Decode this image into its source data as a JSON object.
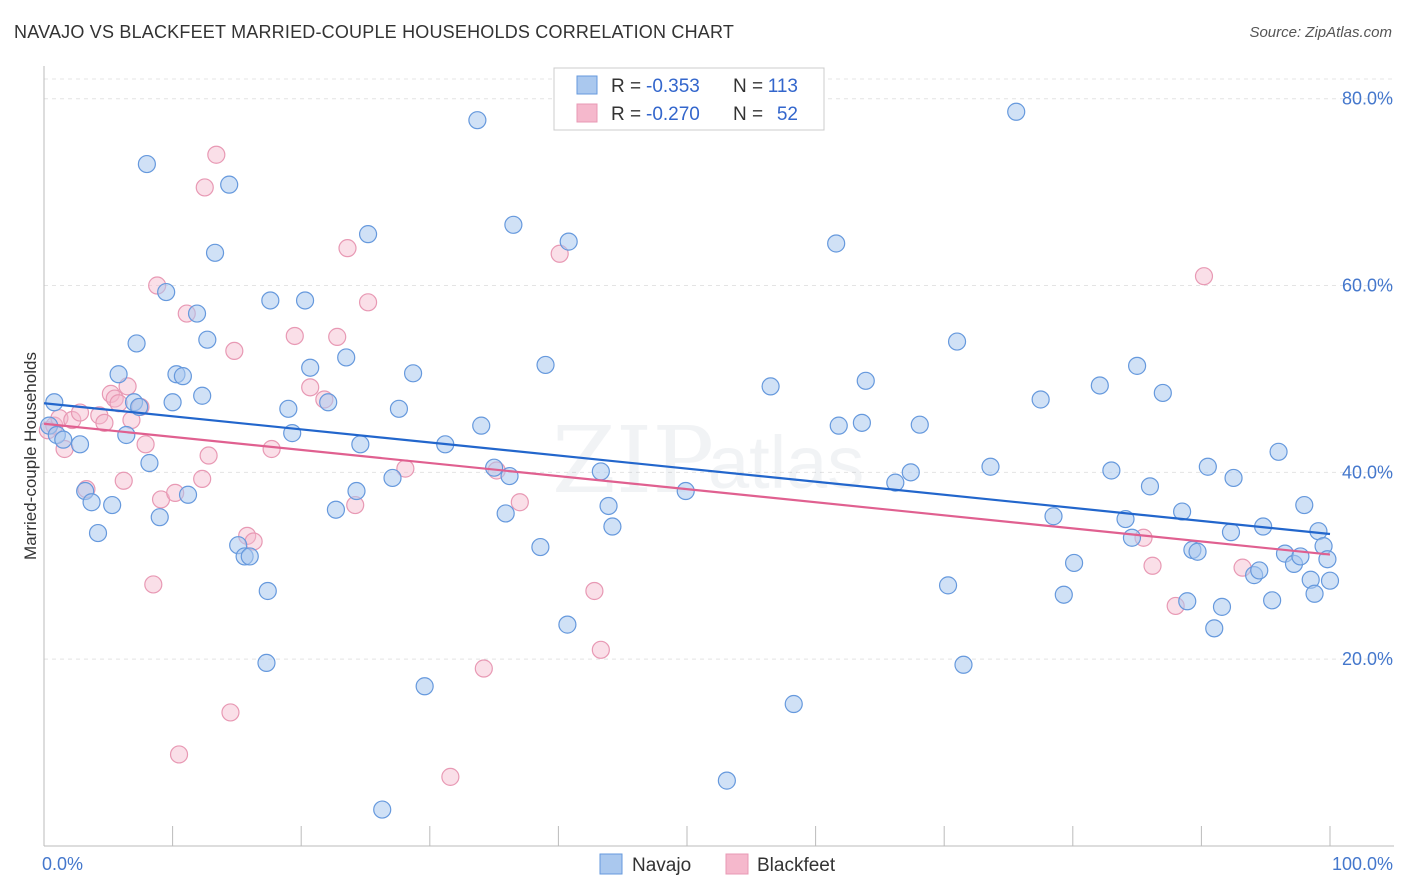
{
  "title": "NAVAJO VS BLACKFEET MARRIED-COUPLE HOUSEHOLDS CORRELATION CHART",
  "source": "Source: ZipAtlas.com",
  "watermark": {
    "zip": "ZIP",
    "atlas": "atlas"
  },
  "colors": {
    "navajo_fill": "#aac8ee",
    "navajo_stroke": "#6699dd",
    "navajo_line": "#2266cc",
    "blackfeet_fill": "#f5b8cc",
    "blackfeet_stroke": "#e899b4",
    "blackfeet_line": "#e06090",
    "axis_text": "#4477cc",
    "grid": "#e4e4e4"
  },
  "legend_top": {
    "rows": [
      {
        "r_label": "R =",
        "r_value": "-0.353",
        "n_label": "N =",
        "n_value": "113"
      },
      {
        "r_label": "R =",
        "r_value": "-0.270",
        "n_label": "N =",
        "n_value": "52"
      }
    ]
  },
  "legend_bottom": {
    "navajo": "Navajo",
    "blackfeet": "Blackfeet"
  },
  "chart_data": {
    "type": "scatter",
    "title": "NAVAJO VS BLACKFEET MARRIED-COUPLE HOUSEHOLDS CORRELATION CHART",
    "xlabel": "",
    "ylabel": "Married-couple Households",
    "xlim": [
      0,
      100
    ],
    "ylim": [
      0,
      83.5
    ],
    "y_ticks": [
      20,
      40,
      60,
      80
    ],
    "y_tick_labels": [
      "20.0%",
      "40.0%",
      "60.0%",
      "80.0%"
    ],
    "x_tick_labels": [
      "0.0%",
      "100.0%"
    ],
    "grid": true,
    "legend_placement": "top-center",
    "series": [
      {
        "name": "Navajo",
        "r": -0.353,
        "n": 113,
        "trend": {
          "x": [
            0,
            100
          ],
          "y": [
            47.4,
            33.4
          ]
        },
        "points": [
          [
            0.8,
            47.5
          ],
          [
            0.4,
            45
          ],
          [
            1,
            44
          ],
          [
            1.5,
            43.5
          ],
          [
            2.8,
            43
          ],
          [
            3.2,
            38
          ],
          [
            3.7,
            36.8
          ],
          [
            4.2,
            33.5
          ],
          [
            5.3,
            36.5
          ],
          [
            5.8,
            50.5
          ],
          [
            6.4,
            44
          ],
          [
            7,
            47.5
          ],
          [
            7.2,
            53.8
          ],
          [
            7.4,
            47
          ],
          [
            8,
            73
          ],
          [
            8.2,
            41
          ],
          [
            9,
            35.2
          ],
          [
            9.5,
            59.3
          ],
          [
            10,
            47.5
          ],
          [
            10.3,
            50.5
          ],
          [
            10.8,
            50.3
          ],
          [
            11.2,
            37.6
          ],
          [
            11.9,
            57
          ],
          [
            12.3,
            48.2
          ],
          [
            12.7,
            54.2
          ],
          [
            13.3,
            63.5
          ],
          [
            14.4,
            70.8
          ],
          [
            15.1,
            32.2
          ],
          [
            15.6,
            31
          ],
          [
            16,
            31
          ],
          [
            17.3,
            19.6
          ],
          [
            17.4,
            27.3
          ],
          [
            17.6,
            58.4
          ],
          [
            19,
            46.8
          ],
          [
            19.3,
            44.2
          ],
          [
            20.3,
            58.4
          ],
          [
            20.7,
            51.2
          ],
          [
            22.1,
            47.5
          ],
          [
            22.7,
            36
          ],
          [
            23.5,
            52.3
          ],
          [
            24.3,
            38
          ],
          [
            24.6,
            43
          ],
          [
            25.2,
            65.5
          ],
          [
            26.3,
            3.9
          ],
          [
            27.1,
            39.4
          ],
          [
            27.6,
            46.8
          ],
          [
            28.7,
            50.6
          ],
          [
            29.6,
            17.1
          ],
          [
            31.2,
            43
          ],
          [
            33.7,
            77.7
          ],
          [
            34,
            45
          ],
          [
            35,
            40.5
          ],
          [
            35.9,
            35.6
          ],
          [
            36.2,
            39.6
          ],
          [
            36.5,
            66.5
          ],
          [
            38.6,
            32
          ],
          [
            39,
            51.5
          ],
          [
            40.7,
            23.7
          ],
          [
            40.8,
            64.7
          ],
          [
            43.3,
            40.1
          ],
          [
            43.9,
            36.4
          ],
          [
            44.2,
            34.2
          ],
          [
            49.9,
            38
          ],
          [
            53.1,
            7
          ],
          [
            56.5,
            49.2
          ],
          [
            58.3,
            15.2
          ],
          [
            61.6,
            64.5
          ],
          [
            61.8,
            45
          ],
          [
            63.6,
            45.3
          ],
          [
            63.9,
            49.8
          ],
          [
            66.2,
            38.9
          ],
          [
            67.4,
            40
          ],
          [
            68.1,
            45.1
          ],
          [
            70.3,
            27.9
          ],
          [
            71,
            54
          ],
          [
            71.5,
            19.4
          ],
          [
            73.6,
            40.6
          ],
          [
            75.6,
            78.6
          ],
          [
            77.5,
            47.8
          ],
          [
            78.5,
            35.3
          ],
          [
            79.3,
            26.9
          ],
          [
            80.1,
            30.3
          ],
          [
            82.1,
            49.3
          ],
          [
            83,
            40.2
          ],
          [
            84.1,
            35
          ],
          [
            84.6,
            33
          ],
          [
            85,
            51.4
          ],
          [
            86,
            38.5
          ],
          [
            87,
            48.5
          ],
          [
            88.5,
            35.8
          ],
          [
            88.9,
            26.2
          ],
          [
            89.3,
            31.7
          ],
          [
            89.7,
            31.5
          ],
          [
            90.5,
            40.6
          ],
          [
            91,
            23.3
          ],
          [
            91.6,
            25.6
          ],
          [
            92.3,
            33.6
          ],
          [
            92.5,
            39.4
          ],
          [
            94.1,
            29
          ],
          [
            94.5,
            29.5
          ],
          [
            94.8,
            34.2
          ],
          [
            95.5,
            26.3
          ],
          [
            96,
            42.2
          ],
          [
            96.5,
            31.3
          ],
          [
            97.2,
            30.2
          ],
          [
            97.7,
            31
          ],
          [
            98,
            36.5
          ],
          [
            98.5,
            28.5
          ],
          [
            98.8,
            27
          ],
          [
            99.1,
            33.7
          ],
          [
            99.5,
            32.1
          ],
          [
            99.8,
            30.7
          ],
          [
            100,
            28.4
          ]
        ]
      },
      {
        "name": "Blackfeet",
        "r": -0.27,
        "n": 52,
        "trend": {
          "x": [
            0,
            100
          ],
          "y": [
            45.2,
            31.2
          ]
        },
        "points": [
          [
            0.3,
            44.5
          ],
          [
            0.8,
            45
          ],
          [
            1.2,
            45.8
          ],
          [
            1.6,
            42.5
          ],
          [
            2.2,
            45.6
          ],
          [
            2.8,
            46.4
          ],
          [
            3.3,
            38.2
          ],
          [
            4.3,
            46.1
          ],
          [
            4.7,
            45.3
          ],
          [
            5.2,
            48.4
          ],
          [
            5.5,
            47.9
          ],
          [
            5.8,
            47.4
          ],
          [
            6.2,
            39.1
          ],
          [
            6.5,
            49.2
          ],
          [
            6.8,
            45.6
          ],
          [
            7.5,
            47
          ],
          [
            7.9,
            43
          ],
          [
            8.5,
            28
          ],
          [
            8.8,
            60
          ],
          [
            9.1,
            37.1
          ],
          [
            10.2,
            37.8
          ],
          [
            10.5,
            9.8
          ],
          [
            11.1,
            57
          ],
          [
            12.3,
            39.3
          ],
          [
            12.5,
            70.5
          ],
          [
            12.8,
            41.8
          ],
          [
            13.4,
            74
          ],
          [
            14.5,
            14.3
          ],
          [
            14.8,
            53
          ],
          [
            15.8,
            33.2
          ],
          [
            16.3,
            32.6
          ],
          [
            17.7,
            42.5
          ],
          [
            19.5,
            54.6
          ],
          [
            20.7,
            49.1
          ],
          [
            21.8,
            47.8
          ],
          [
            22.8,
            54.5
          ],
          [
            23.6,
            64
          ],
          [
            24.2,
            36.5
          ],
          [
            25.2,
            58.2
          ],
          [
            28.1,
            40.4
          ],
          [
            31.6,
            7.4
          ],
          [
            34.2,
            19
          ],
          [
            35.2,
            40.2
          ],
          [
            37,
            36.8
          ],
          [
            40.1,
            63.4
          ],
          [
            42.8,
            27.3
          ],
          [
            43.3,
            21
          ],
          [
            85.5,
            33
          ],
          [
            86.2,
            30
          ],
          [
            88,
            25.7
          ],
          [
            90.2,
            61
          ],
          [
            93.2,
            29.8
          ]
        ]
      }
    ]
  }
}
